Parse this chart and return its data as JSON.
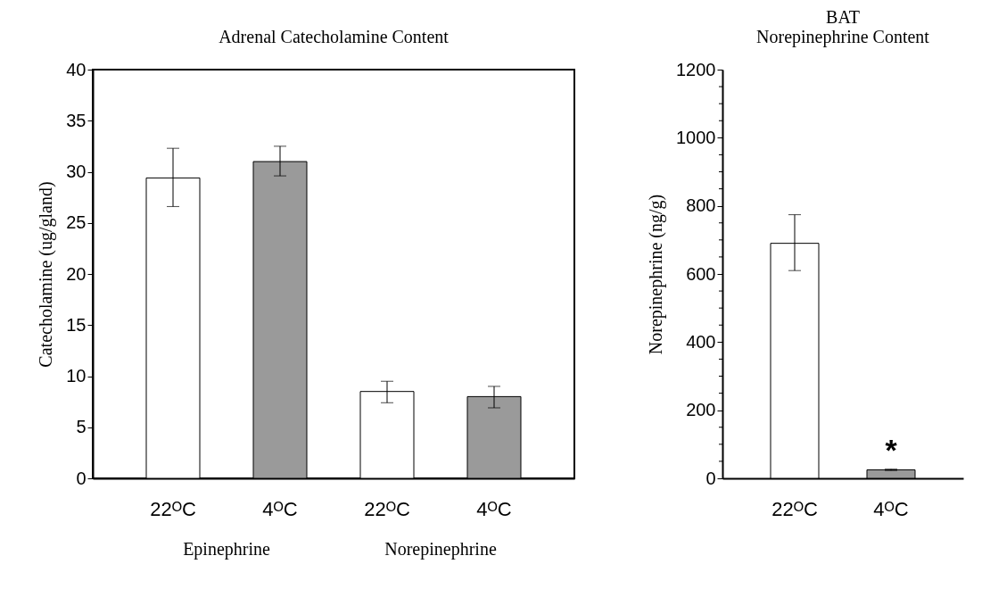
{
  "chart_data": [
    {
      "type": "bar",
      "title": "Adrenal Catecholamine Content",
      "ylabel": "Catecholamine (ug/gland)",
      "categories": [
        "22ᴼC",
        "4ᴼC",
        "22ᴼC",
        "4ᴼC"
      ],
      "values": [
        29.4,
        31.0,
        8.5,
        8.0
      ],
      "colors": [
        "#ffffff",
        "#9a9a9a",
        "#ffffff",
        "#9a9a9a"
      ],
      "errors": [
        [
          26.6,
          32.3
        ],
        [
          29.6,
          32.5
        ],
        [
          7.4,
          9.5
        ],
        [
          6.9,
          9.0
        ]
      ],
      "ylim": [
        0,
        40
      ],
      "yticks": [
        0,
        5,
        10,
        15,
        20,
        25,
        30,
        35,
        40
      ],
      "annotations": [
        "Epinephrine",
        "Norepinephrine"
      ]
    },
    {
      "type": "bar",
      "title": "BAT",
      "subtitle": "Norepinephrine Content",
      "ylabel": "Norepinephrine (ng/g)",
      "categories": [
        "22ᴼC",
        "4ᴼC"
      ],
      "values": [
        690,
        25
      ],
      "colors": [
        "#ffffff",
        "#9a9a9a"
      ],
      "errors": [
        [
          610,
          774
        ],
        [
          23,
          27
        ]
      ],
      "ylim": [
        0,
        1200
      ],
      "yticks": [
        0,
        {
          "value": 50,
          "label": null
        },
        {
          "value": 100,
          "label": null
        },
        {
          "value": 150,
          "label": null
        },
        200,
        {
          "value": 250,
          "label": null
        },
        {
          "value": 300,
          "label": null
        },
        {
          "value": 350,
          "label": null
        },
        400,
        {
          "value": 450,
          "label": null
        },
        {
          "value": 500,
          "label": null
        },
        {
          "value": 550,
          "label": null
        },
        600,
        {
          "value": 650,
          "label": null
        },
        {
          "value": 700,
          "label": null
        },
        {
          "value": 750,
          "label": null
        },
        800,
        {
          "value": 850,
          "label": null
        },
        {
          "value": 900,
          "label": null
        },
        {
          "value": 950,
          "label": null
        },
        1000,
        {
          "value": 1050,
          "label": null
        },
        {
          "value": 1100,
          "label": null
        },
        {
          "value": 1150,
          "label": null
        },
        1200
      ],
      "annotations": [
        {
          "text": "*",
          "x": "4ᴼC",
          "y": 25
        }
      ]
    }
  ]
}
